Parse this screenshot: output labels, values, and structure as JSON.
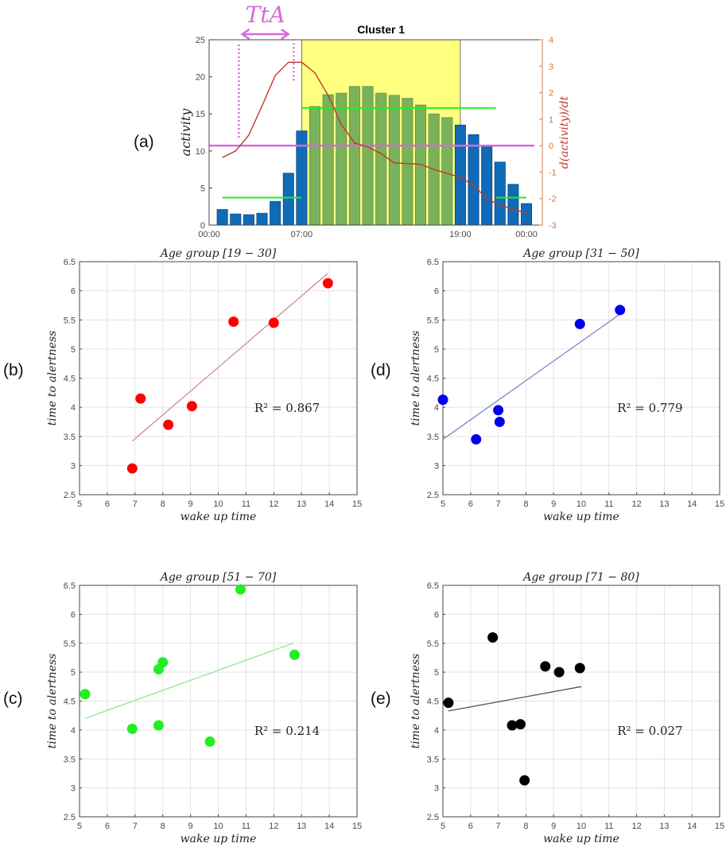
{
  "panel_labels": [
    "(a)",
    "(b)",
    "(d)",
    "(c)",
    "(e)"
  ],
  "colors": {
    "bar_blue": "#0f6bb8",
    "bar_green": "#79b25a",
    "highlight": "#ffff80",
    "derivative": "#c0392b",
    "magenta": "#d86ad8",
    "green_line": "#22ee22"
  },
  "chart_data": [
    {
      "id": "a",
      "type": "bar",
      "title": "Cluster 1",
      "ylabel": "activity",
      "y2label": "d(activity)/dt",
      "annotation": "TtA",
      "xlim": [
        0,
        25.2
      ],
      "ylim": [
        0,
        25
      ],
      "y2lim": [
        -3,
        4
      ],
      "yticks": [
        0,
        5,
        10,
        15,
        20,
        25
      ],
      "y2ticks": [
        -3,
        -2,
        -1,
        0,
        1,
        2,
        3,
        4
      ],
      "xticks": [
        {
          "value": 0,
          "label": "00:00"
        },
        {
          "value": 7,
          "label": "07:00"
        },
        {
          "value": 19,
          "label": "19:00"
        },
        {
          "value": 24,
          "label": "00:00"
        }
      ],
      "highlight_range": [
        7,
        19
      ],
      "x": [
        1,
        2,
        3,
        4,
        5,
        6,
        7,
        8,
        9,
        10,
        11,
        12,
        13,
        14,
        15,
        16,
        17,
        18,
        19,
        20,
        21,
        22,
        23,
        24
      ],
      "values": [
        2.1,
        1.5,
        1.4,
        1.6,
        3.2,
        7.0,
        12.7,
        16.0,
        17.6,
        17.8,
        18.7,
        18.7,
        17.8,
        17.5,
        17.1,
        16.2,
        15.0,
        14.5,
        13.5,
        12.2,
        10.6,
        8.5,
        5.5,
        2.9
      ],
      "derivative": [
        -0.45,
        -0.2,
        0.4,
        1.5,
        2.65,
        3.15,
        3.15,
        2.75,
        1.9,
        0.8,
        0.1,
        -0.05,
        -0.3,
        -0.65,
        -0.68,
        -0.7,
        -0.9,
        -1.05,
        -1.2,
        -1.5,
        -2.0,
        -2.25,
        -2.4,
        -2.55
      ],
      "zero_line": {
        "y2": 0,
        "x_range": [
          0,
          24.6
        ]
      },
      "mean_lines": [
        {
          "activity": 15.8,
          "x_range": [
            7,
            21.7
          ]
        },
        {
          "activity": 3.7,
          "x_range": [
            1,
            7
          ]
        },
        {
          "activity": 3.7,
          "x_range": [
            21.7,
            24
          ]
        }
      ],
      "tta_markers": [
        {
          "hour": 2.25,
          "activity_range": [
            11.8,
            24.7
          ]
        },
        {
          "hour": 6.4,
          "activity_range": [
            19.5,
            24.5
          ]
        }
      ],
      "tta_arrow": [
        2.5,
        6.0
      ]
    },
    {
      "id": "b",
      "type": "scatter",
      "title": "Age group [19 − 30]",
      "xlabel": "wake up time",
      "ylabel": "time to alertness",
      "annotation": "R² = 0.867",
      "color": "#ff0000",
      "line_color": "#d08a8a",
      "xlim": [
        5,
        15
      ],
      "ylim": [
        2.5,
        6.5
      ],
      "grid": true,
      "points": [
        [
          6.9,
          2.95
        ],
        [
          7.2,
          4.15
        ],
        [
          8.2,
          3.7
        ],
        [
          9.05,
          4.02
        ],
        [
          10.55,
          5.47
        ],
        [
          12.0,
          5.45
        ],
        [
          13.95,
          6.13
        ]
      ],
      "fit": [
        [
          6.9,
          3.42
        ],
        [
          13.95,
          6.3
        ]
      ]
    },
    {
      "id": "d",
      "type": "scatter",
      "title": "Age group [31 − 50]",
      "xlabel": "wake up time",
      "ylabel": "time to alertness",
      "annotation": "R² = 0.779",
      "color": "#0000ee",
      "line_color": "#8080c8",
      "xlim": [
        5,
        15
      ],
      "ylim": [
        2.5,
        6.5
      ],
      "grid": true,
      "points": [
        [
          5.0,
          4.13
        ],
        [
          6.2,
          3.45
        ],
        [
          7.0,
          3.95
        ],
        [
          7.05,
          3.75
        ],
        [
          9.95,
          5.43
        ],
        [
          11.4,
          5.67
        ]
      ],
      "fit": [
        [
          5.0,
          3.45
        ],
        [
          11.4,
          5.6
        ]
      ]
    },
    {
      "id": "c",
      "type": "scatter",
      "title": "Age group [51 − 70]",
      "xlabel": "wake up time",
      "ylabel": "time to alertness",
      "annotation": "R² = 0.214",
      "color": "#22ee22",
      "line_color": "#8ee88e",
      "xlim": [
        5,
        15
      ],
      "ylim": [
        2.5,
        6.5
      ],
      "grid": true,
      "points": [
        [
          5.2,
          4.62
        ],
        [
          6.9,
          4.02
        ],
        [
          7.85,
          4.08
        ],
        [
          7.85,
          5.05
        ],
        [
          8.0,
          5.17
        ],
        [
          9.7,
          3.8
        ],
        [
          10.8,
          6.43
        ],
        [
          12.75,
          5.3
        ]
      ],
      "fit": [
        [
          5.2,
          4.2
        ],
        [
          12.7,
          5.5
        ]
      ]
    },
    {
      "id": "e",
      "type": "scatter",
      "title": "Age group [71 − 80]",
      "xlabel": "wake up time",
      "ylabel": "time to alertness",
      "annotation": "R² = 0.027",
      "color": "#000000",
      "line_color": "#555555",
      "xlim": [
        5,
        15
      ],
      "ylim": [
        2.5,
        6.5
      ],
      "grid": true,
      "points": [
        [
          5.2,
          4.47
        ],
        [
          6.8,
          5.6
        ],
        [
          7.5,
          4.08
        ],
        [
          7.8,
          4.1
        ],
        [
          7.95,
          3.13
        ],
        [
          8.7,
          5.1
        ],
        [
          9.2,
          5.0
        ],
        [
          9.95,
          5.07
        ]
      ],
      "fit": [
        [
          5.2,
          4.33
        ],
        [
          10.0,
          4.75
        ]
      ]
    }
  ]
}
